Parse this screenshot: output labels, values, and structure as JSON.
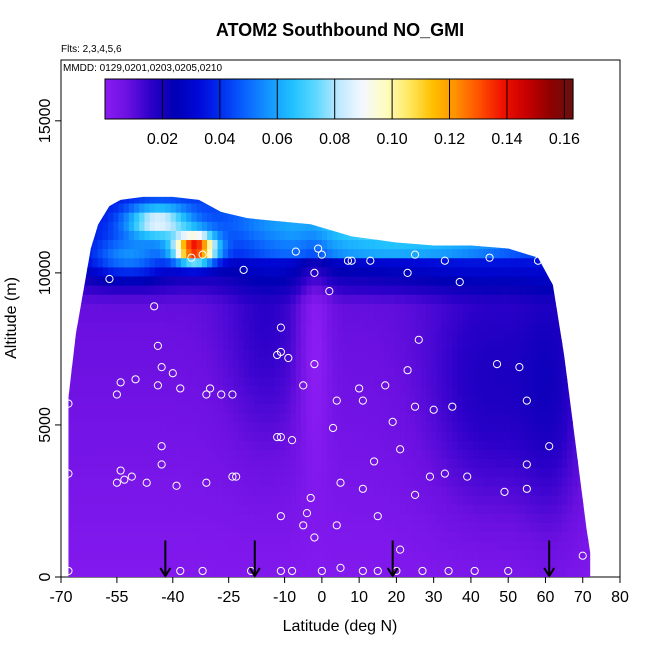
{
  "chart_data": {
    "type": "heatmap",
    "title": "ATOM2 Southbound NO_GMI",
    "subtitle_flights": "Flts: 2,3,4,5,6",
    "subtitle_dates": "MMDD: 0129,0201,0203,0205,0210",
    "xlabel": "Latitude (deg N)",
    "ylabel": "Altitude (m)",
    "xlim": [
      -70,
      80
    ],
    "ylim": [
      0,
      17000
    ],
    "x_ticks": [
      -70,
      -55,
      -40,
      -25,
      -10,
      0,
      10,
      20,
      30,
      40,
      50,
      60,
      70,
      80
    ],
    "x_tick_labels": [
      "-70",
      "-55",
      "-40",
      "-25",
      "-10",
      "0",
      "10",
      "20",
      "30",
      "40",
      "50",
      "60",
      "70",
      "80"
    ],
    "y_ticks": [
      0,
      5000,
      10000,
      15000
    ],
    "y_tick_labels": [
      "0",
      "5000",
      "10000",
      "15000"
    ],
    "colorbar": {
      "min": 0.0,
      "max": 0.163,
      "ticks": [
        0.02,
        0.04,
        0.06,
        0.08,
        0.1,
        0.12,
        0.14,
        0.16
      ],
      "tick_labels": [
        "0.02",
        "0.04",
        "0.06",
        "0.08",
        "0.10",
        "0.12",
        "0.14",
        "0.16"
      ],
      "colors": [
        "#8a1cf2",
        "#6a10e0",
        "#2a00c8",
        "#0000b4",
        "#0008d8",
        "#0030f0",
        "#0a64ff",
        "#1496ff",
        "#20c0ff",
        "#5cd8ff",
        "#bfe8ff",
        "#f4f8ff",
        "#fffcc0",
        "#ffe860",
        "#ffc000",
        "#ff9000",
        "#ff5000",
        "#f01000",
        "#c80000",
        "#900000",
        "#6a1010"
      ]
    },
    "domain_lat_range": [
      -68,
      72
    ],
    "domain_top_altitude": [
      [
        -68,
        5900
      ],
      [
        -66,
        8000
      ],
      [
        -64,
        9400
      ],
      [
        -62,
        10800
      ],
      [
        -60,
        11600
      ],
      [
        -57,
        12200
      ],
      [
        -54,
        12400
      ],
      [
        -48,
        12500
      ],
      [
        -40,
        12500
      ],
      [
        -33,
        12400
      ],
      [
        -27,
        12000
      ],
      [
        -20,
        11800
      ],
      [
        -12,
        11700
      ],
      [
        -3,
        11600
      ],
      [
        8,
        11200
      ],
      [
        20,
        11000
      ],
      [
        30,
        10900
      ],
      [
        40,
        10900
      ],
      [
        50,
        10800
      ],
      [
        58,
        10500
      ],
      [
        62,
        9600
      ],
      [
        65,
        7300
      ],
      [
        67,
        5400
      ],
      [
        69,
        3500
      ],
      [
        71,
        1600
      ],
      [
        72,
        800
      ]
    ],
    "sample_points": [
      [
        -68,
        200
      ],
      [
        -68,
        3400
      ],
      [
        -68,
        5700
      ],
      [
        -57,
        9800
      ],
      [
        -55,
        6000
      ],
      [
        -54,
        6400
      ],
      [
        -55,
        3100
      ],
      [
        -54,
        3500
      ],
      [
        -53,
        3200
      ],
      [
        -51,
        3300
      ],
      [
        -50,
        6500
      ],
      [
        -47,
        3100
      ],
      [
        -45,
        8900
      ],
      [
        -44,
        7600
      ],
      [
        -44,
        6300
      ],
      [
        -43,
        6900
      ],
      [
        -43,
        4300
      ],
      [
        -43,
        3700
      ],
      [
        -40,
        6700
      ],
      [
        -38,
        200
      ],
      [
        -39,
        3000
      ],
      [
        -38,
        6200
      ],
      [
        -35,
        10500
      ],
      [
        -32,
        10600
      ],
      [
        -31,
        6000
      ],
      [
        -30,
        6200
      ],
      [
        -31,
        3100
      ],
      [
        -32,
        200
      ],
      [
        -27,
        6000
      ],
      [
        -24,
        3300
      ],
      [
        -24,
        6000
      ],
      [
        -23,
        3300
      ],
      [
        -21,
        10100
      ],
      [
        -19,
        200
      ],
      [
        -12,
        7300
      ],
      [
        -12,
        4600
      ],
      [
        -11,
        4600
      ],
      [
        -11,
        2000
      ],
      [
        -11,
        200
      ],
      [
        -11,
        8200
      ],
      [
        -11,
        7400
      ],
      [
        -10,
        12000
      ],
      [
        -9,
        7200
      ],
      [
        -8,
        4500
      ],
      [
        -8,
        200
      ],
      [
        -7,
        10700
      ],
      [
        -5,
        1700
      ],
      [
        -5,
        6300
      ],
      [
        -4,
        2100
      ],
      [
        -3,
        2600
      ],
      [
        -2,
        7000
      ],
      [
        -2,
        10000
      ],
      [
        -2,
        1300
      ],
      [
        -1,
        10800
      ],
      [
        0,
        200
      ],
      [
        0,
        10600
      ],
      [
        2,
        9400
      ],
      [
        3,
        4900
      ],
      [
        4,
        5800
      ],
      [
        4,
        1700
      ],
      [
        5,
        3100
      ],
      [
        5,
        300
      ],
      [
        7,
        10400
      ],
      [
        8,
        10400
      ],
      [
        10,
        6200
      ],
      [
        11,
        5800
      ],
      [
        11,
        2900
      ],
      [
        11,
        200
      ],
      [
        13,
        10400
      ],
      [
        14,
        3800
      ],
      [
        15,
        2000
      ],
      [
        15,
        200
      ],
      [
        17,
        6300
      ],
      [
        19,
        5100
      ],
      [
        20,
        200
      ],
      [
        21,
        900
      ],
      [
        21,
        4200
      ],
      [
        23,
        10000
      ],
      [
        23,
        6800
      ],
      [
        25,
        10600
      ],
      [
        25,
        5600
      ],
      [
        25,
        2700
      ],
      [
        26,
        7800
      ],
      [
        27,
        200
      ],
      [
        29,
        3300
      ],
      [
        30,
        5500
      ],
      [
        33,
        10400
      ],
      [
        33,
        3400
      ],
      [
        34,
        200
      ],
      [
        35,
        5600
      ],
      [
        37,
        9700
      ],
      [
        39,
        3300
      ],
      [
        41,
        200
      ],
      [
        45,
        10500
      ],
      [
        47,
        7000
      ],
      [
        49,
        2800
      ],
      [
        50,
        200
      ],
      [
        53,
        6900
      ],
      [
        55,
        3700
      ],
      [
        55,
        5800
      ],
      [
        55,
        2900
      ],
      [
        58,
        10400
      ],
      [
        61,
        4300
      ],
      [
        70,
        700
      ]
    ],
    "arrow_markers_lat": [
      -42,
      -18,
      19,
      61
    ],
    "grid": false,
    "legend_placement": "top"
  }
}
